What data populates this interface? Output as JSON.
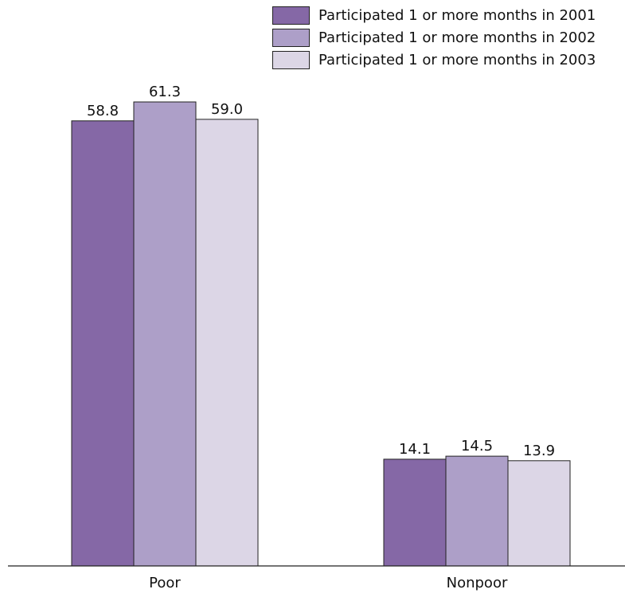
{
  "chart_data": {
    "type": "bar",
    "categories": [
      "Poor",
      "Nonpoor"
    ],
    "series": [
      {
        "name": "Participated 1 or more months in 2001",
        "color": "#8568a6",
        "values": [
          58.8,
          14.1
        ]
      },
      {
        "name": "Participated 1 or more months in 2002",
        "color": "#ad9fc8",
        "values": [
          61.3,
          14.5
        ]
      },
      {
        "name": "Participated 1 or more months in 2003",
        "color": "#dcd6e6",
        "values": [
          59.0,
          13.9
        ]
      }
    ],
    "value_labels": [
      [
        "58.8",
        "14.1"
      ],
      [
        "61.3",
        "14.5"
      ],
      [
        "59.0",
        "13.9"
      ]
    ],
    "grid": false,
    "legend_position": "top-right"
  }
}
